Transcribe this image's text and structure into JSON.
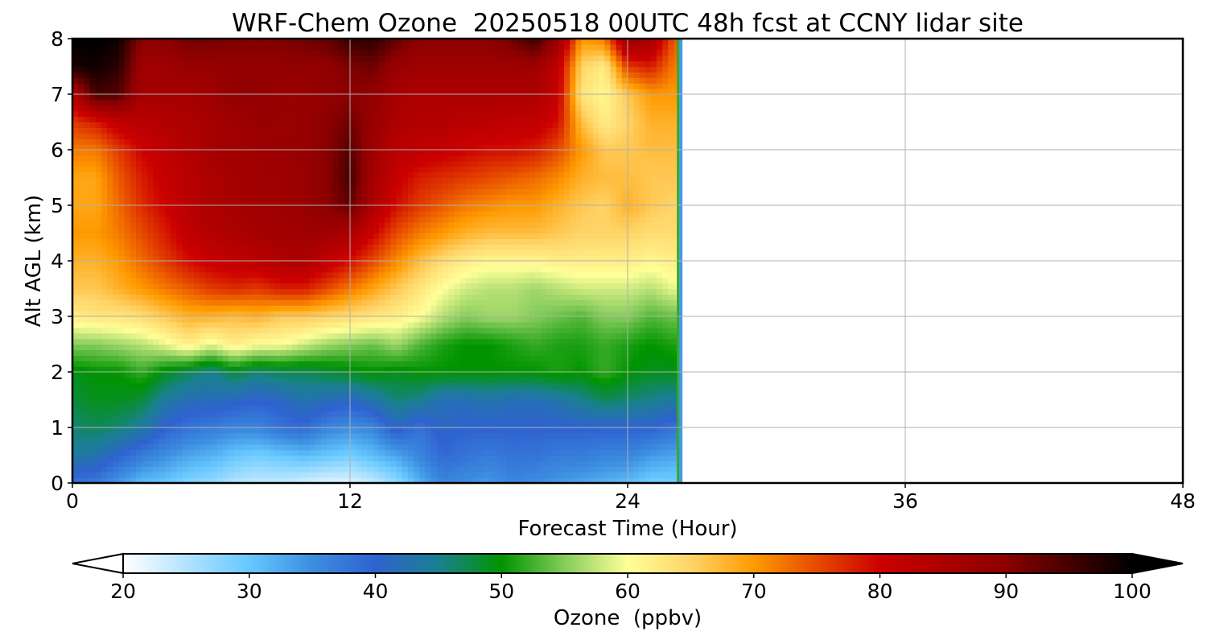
{
  "chart_data": {
    "type": "heatmap",
    "title": "WRF-Chem Ozone  20250518 00UTC 48h fcst at CCNY lidar site",
    "xlabel": "Forecast Time (Hour)",
    "ylabel": "Alt AGL (km)",
    "xlim": [
      0,
      48
    ],
    "ylim": [
      0,
      8
    ],
    "x_ticks": [
      "0",
      "12",
      "24",
      "36",
      "48"
    ],
    "y_ticks": [
      "0",
      "1",
      "2",
      "3",
      "4",
      "5",
      "6",
      "7",
      "8"
    ],
    "grid": true,
    "data_end_hour": 26.3,
    "x": [
      0,
      1,
      2,
      3,
      4,
      5,
      6,
      7,
      8,
      9,
      10,
      11,
      12,
      13,
      14,
      15,
      16,
      17,
      18,
      19,
      20,
      21,
      22,
      23,
      24,
      25,
      26
    ],
    "y": [
      0,
      0.5,
      1,
      1.5,
      2,
      2.5,
      3,
      3.5,
      4,
      4.5,
      5,
      5.5,
      6,
      6.5,
      7,
      7.5,
      8
    ],
    "values": [
      [
        38,
        37,
        34,
        31,
        30,
        28,
        27,
        25,
        24,
        24,
        23,
        22,
        22,
        24,
        27,
        32,
        36,
        35,
        34,
        36,
        35,
        34,
        33,
        32,
        31,
        29,
        29
      ],
      [
        44,
        43,
        40,
        37,
        35,
        33,
        32,
        30,
        29,
        30,
        31,
        30,
        29,
        31,
        33,
        36,
        39,
        38,
        37,
        38,
        38,
        37,
        37,
        36,
        36,
        34,
        33
      ],
      [
        46,
        47,
        46,
        44,
        40,
        38,
        37,
        36,
        36,
        38,
        39,
        36,
        35,
        36,
        41,
        38,
        41,
        40,
        40,
        40,
        40,
        40,
        40,
        40,
        40,
        40,
        38
      ],
      [
        48,
        49,
        49,
        48,
        44,
        42,
        42,
        41,
        40,
        41,
        43,
        42,
        41,
        43,
        46,
        45,
        42,
        42,
        43,
        42,
        42,
        43,
        45,
        47,
        46,
        45,
        44
      ],
      [
        49,
        50,
        50,
        52,
        49,
        47,
        45,
        48,
        46,
        47,
        47,
        48,
        49,
        50,
        49,
        50,
        50,
        50,
        50,
        50,
        50,
        51,
        50,
        52,
        50,
        49,
        49
      ],
      [
        55,
        55,
        56,
        57,
        59,
        62,
        59,
        62,
        60,
        60,
        58,
        56,
        55,
        54,
        56,
        53,
        51,
        50,
        50,
        51,
        52,
        51,
        51,
        52,
        51,
        50,
        51
      ],
      [
        62,
        63,
        63,
        64,
        66,
        68,
        68,
        67,
        68,
        66,
        66,
        65,
        64,
        63,
        62,
        60,
        57,
        55,
        56,
        56,
        55,
        54,
        53,
        55,
        55,
        53,
        54
      ],
      [
        66,
        66,
        68,
        70,
        72,
        74,
        76,
        77,
        76,
        78,
        78,
        75,
        72,
        69,
        66,
        63,
        60,
        58,
        57,
        57,
        56,
        57,
        58,
        58,
        58,
        57,
        59
      ],
      [
        68,
        68,
        70,
        73,
        76,
        79,
        81,
        82,
        83,
        84,
        85,
        82,
        79,
        75,
        71,
        67,
        64,
        62,
        61,
        61,
        61,
        62,
        62,
        62,
        62,
        61,
        62
      ],
      [
        70,
        70,
        72,
        75,
        78,
        82,
        84,
        85,
        86,
        87,
        87,
        87,
        85,
        80,
        75,
        72,
        70,
        68,
        67,
        67,
        67,
        66,
        65,
        65,
        65,
        64,
        64
      ],
      [
        69,
        69,
        73,
        77,
        80,
        83,
        85,
        86,
        87,
        87,
        88,
        90,
        93,
        85,
        79,
        76,
        74,
        72,
        71,
        70,
        70,
        68,
        66,
        65,
        68,
        66,
        65
      ],
      [
        69,
        69,
        74,
        78,
        81,
        83,
        85,
        86,
        87,
        87,
        88,
        90,
        95,
        86,
        81,
        78,
        77,
        76,
        75,
        74,
        73,
        71,
        68,
        67,
        67,
        66,
        66
      ],
      [
        72,
        72,
        76,
        80,
        82,
        84,
        86,
        87,
        87,
        88,
        88,
        90,
        94,
        87,
        83,
        82,
        81,
        80,
        79,
        79,
        78,
        75,
        70,
        66,
        66,
        67,
        67
      ],
      [
        76,
        78,
        82,
        83,
        84,
        85,
        86,
        87,
        88,
        88,
        88,
        90,
        92,
        88,
        85,
        84,
        84,
        83,
        83,
        82,
        82,
        79,
        67,
        62,
        65,
        68,
        68
      ],
      [
        83,
        95,
        94,
        86,
        86,
        86,
        87,
        89,
        89,
        88,
        88,
        89,
        90,
        89,
        86,
        85,
        85,
        85,
        85,
        85,
        85,
        81,
        63,
        61,
        66,
        70,
        70
      ],
      [
        98,
        99,
        97,
        87,
        87,
        88,
        88,
        89,
        89,
        89,
        89,
        89,
        91,
        92,
        88,
        87,
        87,
        87,
        87,
        87,
        87,
        82,
        65,
        62,
        76,
        78,
        72
      ],
      [
        100,
        100,
        99,
        90,
        90,
        92,
        92,
        91,
        91,
        91,
        92,
        93,
        96,
        97,
        93,
        90,
        90,
        90,
        90,
        92,
        96,
        88,
        70,
        72,
        88,
        86,
        74
      ]
    ],
    "colorbar": {
      "label": "Ozone  (ppbv)",
      "min": 20,
      "max": 100,
      "extend": "both",
      "ticks": [
        "20",
        "30",
        "40",
        "50",
        "60",
        "70",
        "80",
        "90",
        "100"
      ],
      "stops": [
        [
          20,
          "#ffffff"
        ],
        [
          30,
          "#66c8ff"
        ],
        [
          35,
          "#3c8ee0"
        ],
        [
          40,
          "#2f62d0"
        ],
        [
          45,
          "#1a8090"
        ],
        [
          50,
          "#009400"
        ],
        [
          55,
          "#86cc5c"
        ],
        [
          60,
          "#ffff99"
        ],
        [
          65,
          "#ffd468"
        ],
        [
          70,
          "#ff9a00"
        ],
        [
          75,
          "#e64a00"
        ],
        [
          80,
          "#cc0000"
        ],
        [
          90,
          "#8c0000"
        ],
        [
          100,
          "#000000"
        ]
      ]
    }
  }
}
